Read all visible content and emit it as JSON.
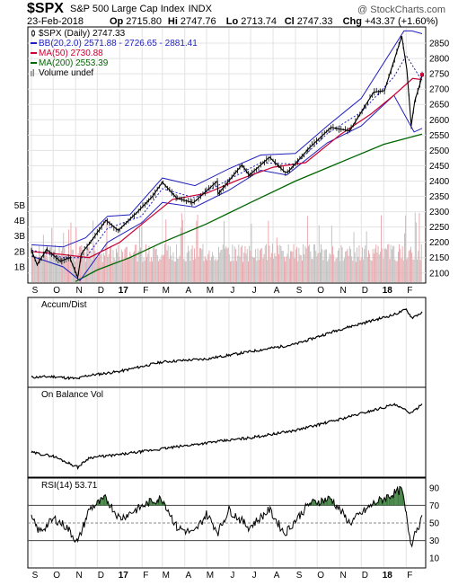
{
  "header": {
    "symbol": "$SPX",
    "description": "S&P 500 Large Cap Index",
    "exchange": "INDX",
    "watermark": "@ StockCharts.com",
    "date": "23-Feb-2018",
    "ohlc": [
      {
        "label": "Op",
        "value": "2715.80"
      },
      {
        "label": "Hi",
        "value": "2747.76"
      },
      {
        "label": "Lo",
        "value": "2713.74"
      },
      {
        "label": "Cl",
        "value": "2747.33"
      },
      {
        "label": "Chg",
        "value": "+43.37 (+1.60%)"
      }
    ]
  },
  "legend": [
    {
      "text": "$SPX (Daily) 2747.33",
      "color": "#000000",
      "icon": "candle"
    },
    {
      "text": "BB(20,2.0) 2571.88 - 2726.65 - 2881.41",
      "color": "#1f1fbf",
      "icon": "line"
    },
    {
      "text": "MA(50) 2730.88",
      "color": "#cc0033",
      "icon": "line"
    },
    {
      "text": "MA(200) 2553.39",
      "color": "#006600",
      "icon": "line"
    },
    {
      "text": "Volume undef",
      "color": "#888888",
      "icon": "bars"
    }
  ],
  "colors": {
    "price": "#000000",
    "bb": "#1f1fbf",
    "ma50": "#cc0033",
    "ma200": "#006600",
    "vol_up": "#bdbdbd",
    "vol_down": "#e8a3a8",
    "rsi_fill": "#3f7f3f"
  },
  "months": [
    "S",
    "O",
    "N",
    "D",
    "17",
    "F",
    "M",
    "A",
    "M",
    "J",
    "J",
    "A",
    "S",
    "O",
    "N",
    "D",
    "18",
    "F"
  ],
  "chart_data": [
    {
      "type": "line",
      "panel": "price",
      "title": "$SPX S&P 500 Large Cap Index",
      "x_range": [
        "2016-09-01",
        "2018-02-23"
      ],
      "ylim": [
        2070,
        2900
      ],
      "yticks": [
        2100,
        2150,
        2200,
        2250,
        2300,
        2350,
        2400,
        2450,
        2500,
        2550,
        2600,
        2650,
        2700,
        2750,
        2800,
        2850
      ],
      "volume_yticks": [
        "1B",
        "2B",
        "3B",
        "4B",
        "5B"
      ],
      "volume_ylim_billions": [
        0,
        5.5
      ],
      "series": [
        {
          "name": "$SPX (Daily)",
          "points": [
            [
              "2016-09-01",
              2175
            ],
            [
              "2016-09-09",
              2127
            ],
            [
              "2016-09-22",
              2177
            ],
            [
              "2016-10-11",
              2138
            ],
            [
              "2016-10-24",
              2150
            ],
            [
              "2016-11-04",
              2085
            ],
            [
              "2016-11-09",
              2163
            ],
            [
              "2016-11-22",
              2202
            ],
            [
              "2016-12-13",
              2272
            ],
            [
              "2016-12-30",
              2239
            ],
            [
              "2017-01-25",
              2298
            ],
            [
              "2017-02-15",
              2349
            ],
            [
              "2017-03-01",
              2396
            ],
            [
              "2017-03-21",
              2344
            ],
            [
              "2017-04-13",
              2329
            ],
            [
              "2017-05-16",
              2400
            ],
            [
              "2017-05-17",
              2357
            ],
            [
              "2017-06-19",
              2453
            ],
            [
              "2017-06-29",
              2419
            ],
            [
              "2017-07-27",
              2478
            ],
            [
              "2017-08-17",
              2430
            ],
            [
              "2017-08-21",
              2428
            ],
            [
              "2017-09-20",
              2508
            ],
            [
              "2017-10-20",
              2575
            ],
            [
              "2017-11-15",
              2564
            ],
            [
              "2017-12-18",
              2690
            ],
            [
              "2018-01-02",
              2695
            ],
            [
              "2018-01-26",
              2873
            ],
            [
              "2018-02-02",
              2762
            ],
            [
              "2018-02-08",
              2581
            ],
            [
              "2018-02-13",
              2662
            ],
            [
              "2018-02-20",
              2716
            ],
            [
              "2018-02-23",
              2747
            ]
          ]
        },
        {
          "name": "BB Upper",
          "points": [
            [
              "2016-09-01",
              2192
            ],
            [
              "2016-10-15",
              2185
            ],
            [
              "2016-11-15",
              2215
            ],
            [
              "2016-12-15",
              2285
            ],
            [
              "2017-01-15",
              2290
            ],
            [
              "2017-03-01",
              2410
            ],
            [
              "2017-04-15",
              2385
            ],
            [
              "2017-06-01",
              2440
            ],
            [
              "2017-07-15",
              2485
            ],
            [
              "2017-09-01",
              2490
            ],
            [
              "2017-10-15",
              2580
            ],
            [
              "2017-12-01",
              2670
            ],
            [
              "2018-01-29",
              2890
            ],
            [
              "2018-02-09",
              2890
            ],
            [
              "2018-02-23",
              2881
            ]
          ]
        },
        {
          "name": "BB Middle",
          "points": [
            [
              "2016-09-01",
              2175
            ],
            [
              "2016-10-15",
              2150
            ],
            [
              "2016-11-15",
              2150
            ],
            [
              "2016-12-15",
              2245
            ],
            [
              "2017-01-31",
              2285
            ],
            [
              "2017-03-01",
              2375
            ],
            [
              "2017-04-15",
              2345
            ],
            [
              "2017-06-01",
              2405
            ],
            [
              "2017-07-15",
              2460
            ],
            [
              "2017-09-01",
              2455
            ],
            [
              "2017-10-15",
              2555
            ],
            [
              "2017-12-01",
              2625
            ],
            [
              "2018-01-15",
              2740
            ],
            [
              "2018-02-01",
              2810
            ],
            [
              "2018-02-23",
              2727
            ]
          ]
        },
        {
          "name": "BB Lower",
          "points": [
            [
              "2016-09-01",
              2155
            ],
            [
              "2016-10-15",
              2120
            ],
            [
              "2016-11-07",
              2075
            ],
            [
              "2016-12-15",
              2200
            ],
            [
              "2017-02-01",
              2265
            ],
            [
              "2017-03-01",
              2330
            ],
            [
              "2017-04-15",
              2315
            ],
            [
              "2017-06-01",
              2370
            ],
            [
              "2017-07-15",
              2435
            ],
            [
              "2017-08-20",
              2420
            ],
            [
              "2017-10-15",
              2525
            ],
            [
              "2017-12-01",
              2580
            ],
            [
              "2018-01-15",
              2680
            ],
            [
              "2018-02-12",
              2560
            ],
            [
              "2018-02-23",
              2572
            ]
          ]
        },
        {
          "name": "MA(50)",
          "points": [
            [
              "2016-09-01",
              2170
            ],
            [
              "2016-10-15",
              2160
            ],
            [
              "2016-11-20",
              2150
            ],
            [
              "2017-01-01",
              2200
            ],
            [
              "2017-02-01",
              2260
            ],
            [
              "2017-03-15",
              2340
            ],
            [
              "2017-05-01",
              2360
            ],
            [
              "2017-06-15",
              2405
            ],
            [
              "2017-08-01",
              2445
            ],
            [
              "2017-09-15",
              2460
            ],
            [
              "2017-11-01",
              2550
            ],
            [
              "2017-12-15",
              2620
            ],
            [
              "2018-01-15",
              2680
            ],
            [
              "2018-02-10",
              2735
            ],
            [
              "2018-02-23",
              2731
            ]
          ]
        },
        {
          "name": "MA(200)",
          "points": [
            [
              "2016-11-01",
              2072
            ],
            [
              "2016-12-01",
              2110
            ],
            [
              "2017-01-15",
              2150
            ],
            [
              "2017-03-01",
              2200
            ],
            [
              "2017-05-01",
              2260
            ],
            [
              "2017-07-01",
              2330
            ],
            [
              "2017-09-01",
              2400
            ],
            [
              "2017-11-01",
              2460
            ],
            [
              "2018-01-01",
              2520
            ],
            [
              "2018-02-23",
              2553
            ]
          ]
        }
      ]
    },
    {
      "type": "line",
      "panel": "accum_dist",
      "series": [
        {
          "name": "Accum/Dist",
          "label": "Accum/Dist",
          "points": [
            [
              "2016-09-01",
              0.05
            ],
            [
              "2016-10-01",
              0.06
            ],
            [
              "2016-11-04",
              0.03
            ],
            [
              "2016-11-15",
              0.07
            ],
            [
              "2017-01-01",
              0.13
            ],
            [
              "2017-03-01",
              0.26
            ],
            [
              "2017-05-01",
              0.3
            ],
            [
              "2017-07-01",
              0.4
            ],
            [
              "2017-09-01",
              0.5
            ],
            [
              "2017-11-01",
              0.7
            ],
            [
              "2018-01-15",
              0.9
            ],
            [
              "2018-02-01",
              0.97
            ],
            [
              "2018-02-09",
              0.86
            ],
            [
              "2018-02-23",
              0.93
            ]
          ]
        }
      ]
    },
    {
      "type": "line",
      "panel": "obv",
      "series": [
        {
          "name": "On Balance Vol",
          "label": "On Balance Vol",
          "points": [
            [
              "2016-09-01",
              0.25
            ],
            [
              "2016-10-01",
              0.2
            ],
            [
              "2016-11-04",
              0.05
            ],
            [
              "2016-11-20",
              0.18
            ],
            [
              "2017-01-01",
              0.22
            ],
            [
              "2017-03-01",
              0.3
            ],
            [
              "2017-05-01",
              0.38
            ],
            [
              "2017-07-01",
              0.45
            ],
            [
              "2017-09-01",
              0.55
            ],
            [
              "2017-11-01",
              0.7
            ],
            [
              "2018-01-15",
              0.9
            ],
            [
              "2018-02-09",
              0.78
            ],
            [
              "2018-02-23",
              0.92
            ]
          ]
        }
      ]
    },
    {
      "type": "line",
      "panel": "rsi",
      "ylim": [
        0,
        100
      ],
      "yticks": [
        10,
        30,
        50,
        70,
        90
      ],
      "reference_lines": [
        30,
        50,
        70
      ],
      "series": [
        {
          "name": "RSI(14)",
          "label": "RSI(14) 53.71",
          "points": [
            [
              "2016-09-01",
              55
            ],
            [
              "2016-09-12",
              40
            ],
            [
              "2016-10-03",
              55
            ],
            [
              "2016-10-20",
              45
            ],
            [
              "2016-11-04",
              28
            ],
            [
              "2016-11-20",
              66
            ],
            [
              "2016-12-13",
              78
            ],
            [
              "2017-01-01",
              55
            ],
            [
              "2017-02-15",
              75
            ],
            [
              "2017-03-01",
              78
            ],
            [
              "2017-03-21",
              45
            ],
            [
              "2017-04-13",
              38
            ],
            [
              "2017-05-01",
              60
            ],
            [
              "2017-05-17",
              40
            ],
            [
              "2017-06-01",
              65
            ],
            [
              "2017-06-29",
              45
            ],
            [
              "2017-07-27",
              65
            ],
            [
              "2017-08-17",
              38
            ],
            [
              "2017-09-20",
              72
            ],
            [
              "2017-10-20",
              78
            ],
            [
              "2017-11-15",
              50
            ],
            [
              "2017-12-18",
              72
            ],
            [
              "2018-01-26",
              88
            ],
            [
              "2018-02-08",
              25
            ],
            [
              "2018-02-13",
              40
            ],
            [
              "2018-02-23",
              54
            ]
          ]
        }
      ]
    }
  ]
}
